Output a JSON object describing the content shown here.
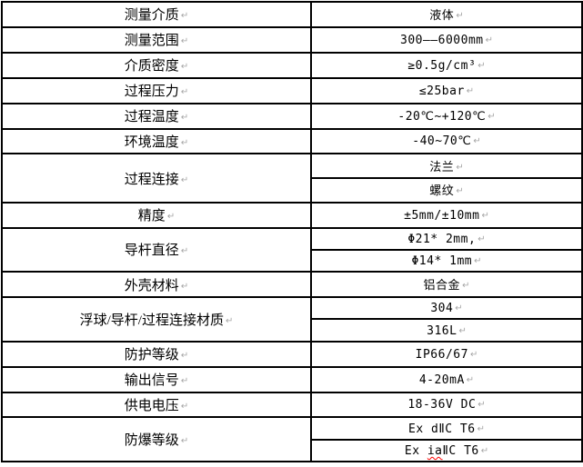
{
  "pilcrow": "↵",
  "colors": {
    "border": "#000000",
    "pilcrow_mark": "#a6a6a6",
    "spellcheck_underline": "#ff0000",
    "text": "#000000",
    "background": "#ffffff"
  },
  "rows": [
    {
      "label": "测量介质",
      "value": "液体"
    },
    {
      "label": "测量范围",
      "value": "300——6000mm"
    },
    {
      "label": "介质密度",
      "value": "≥0.5g/cm³"
    },
    {
      "label": "过程压力",
      "value": "≤25bar"
    },
    {
      "label": "过程温度",
      "value": "-20℃~+120℃"
    },
    {
      "label": "环境温度",
      "value": "-40~70℃"
    },
    {
      "label": "过程连接",
      "value1": "法兰",
      "value2": "螺纹"
    },
    {
      "label": "精度",
      "value": "±5mm/±10mm"
    },
    {
      "label": "导杆直径",
      "value1": "Φ21* 2mm,",
      "value2": "Φ14* 1mm"
    },
    {
      "label": "外壳材料",
      "value": "铝合金"
    },
    {
      "label": "浮球/导杆/过程连接材质",
      "value1": "304",
      "value2": "316L"
    },
    {
      "label": "防护等级",
      "value": "IP66/67"
    },
    {
      "label": "输出信号",
      "value": "4-20mA"
    },
    {
      "label": "供电电压",
      "value": "18-36V DC"
    },
    {
      "label": "防爆等级",
      "value1": "Ex dⅡC T6",
      "value2_parts": {
        "prefix": "Ex ",
        "misspelled": "ia",
        "suffix": "ⅡC T6"
      }
    }
  ]
}
